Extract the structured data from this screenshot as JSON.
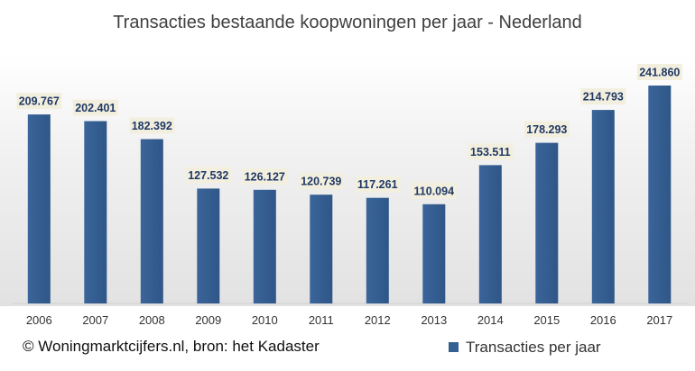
{
  "chart_data": {
    "type": "bar",
    "title": "Transacties bestaande koopwoningen per jaar - Nederland",
    "categories": [
      "2006",
      "2007",
      "2008",
      "2009",
      "2010",
      "2011",
      "2012",
      "2013",
      "2014",
      "2015",
      "2016",
      "2017"
    ],
    "series": [
      {
        "name": "Transacties per jaar",
        "values": [
          209767,
          202401,
          182392,
          127532,
          126127,
          120739,
          117261,
          110094,
          153511,
          178293,
          214793,
          241860
        ],
        "value_labels": [
          "209.767",
          "202.401",
          "182.392",
          "127.532",
          "126.127",
          "120.739",
          "117.261",
          "110.094",
          "153.511",
          "178.293",
          "214.793",
          "241.860"
        ]
      }
    ],
    "ylim": [
      0,
      241860
    ],
    "grid": false,
    "legend_position": "bottom-right",
    "footer": "© Woningmarktcijfers.nl, bron: het Kadaster",
    "colors": {
      "bar": "#355e91",
      "label_box": "#f3efdf",
      "label_text": "#1f3864",
      "title": "#404040",
      "axis_text": "#333333",
      "plot_band": "#e6e6e6"
    }
  }
}
